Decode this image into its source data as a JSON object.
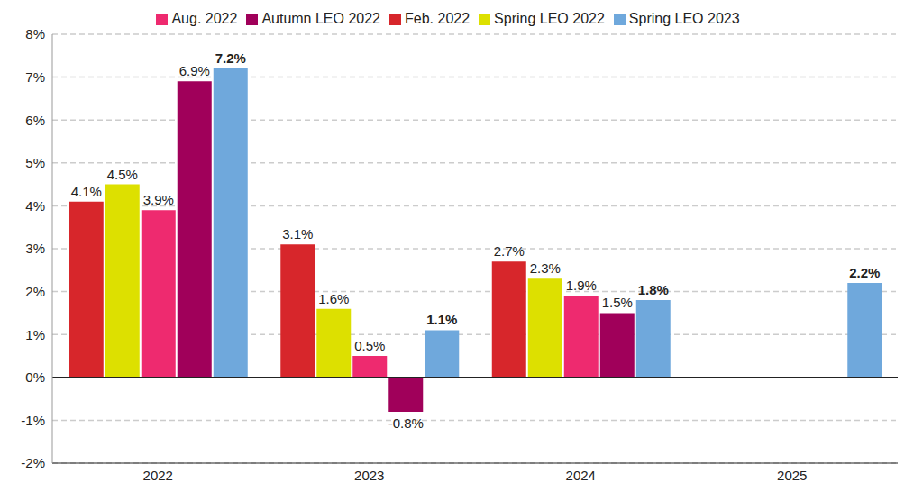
{
  "chart_data": {
    "type": "bar",
    "categories": [
      "2022",
      "2023",
      "2024",
      "2025"
    ],
    "series": [
      {
        "name": "Feb. 2022",
        "color": "#d7262b",
        "values": [
          4.1,
          3.1,
          2.7,
          null
        ],
        "value_labels": [
          "4.1%",
          "3.1%",
          "2.7%",
          null
        ]
      },
      {
        "name": "Spring LEO 2022",
        "color": "#dde000",
        "values": [
          4.5,
          1.6,
          2.3,
          null
        ],
        "value_labels": [
          "4.5%",
          "1.6%",
          "2.3%",
          null
        ]
      },
      {
        "name": "Aug. 2022",
        "color": "#ee2a6f",
        "values": [
          3.9,
          0.5,
          1.9,
          null
        ],
        "value_labels": [
          "3.9%",
          "0.5%",
          "1.9%",
          null
        ]
      },
      {
        "name": "Autumn LEO 2022",
        "color": "#a0005a",
        "values": [
          6.9,
          -0.8,
          1.5,
          null
        ],
        "value_labels": [
          "6.9%",
          "-0.8%",
          "1.5%",
          null
        ]
      },
      {
        "name": "Spring LEO 2023",
        "color": "#6fa8dc",
        "values": [
          7.2,
          1.1,
          1.8,
          2.2
        ],
        "value_labels": [
          "7.2%",
          "1.1%",
          "1.8%",
          "2.2%"
        ]
      }
    ],
    "ylim": [
      -2,
      8
    ],
    "yticks": [
      {
        "value": -2,
        "label": "-2%"
      },
      {
        "value": -1,
        "label": "-1%"
      },
      {
        "value": 0,
        "label": "0%"
      },
      {
        "value": 1,
        "label": "1%"
      },
      {
        "value": 2,
        "label": "2%"
      },
      {
        "value": 3,
        "label": "3%"
      },
      {
        "value": 4,
        "label": "4%"
      },
      {
        "value": 5,
        "label": "5%"
      },
      {
        "value": 6,
        "label": "6%"
      },
      {
        "value": 7,
        "label": "7%"
      },
      {
        "value": 8,
        "label": "8%"
      }
    ],
    "grid": true,
    "legend": "top",
    "data_labels": true
  }
}
